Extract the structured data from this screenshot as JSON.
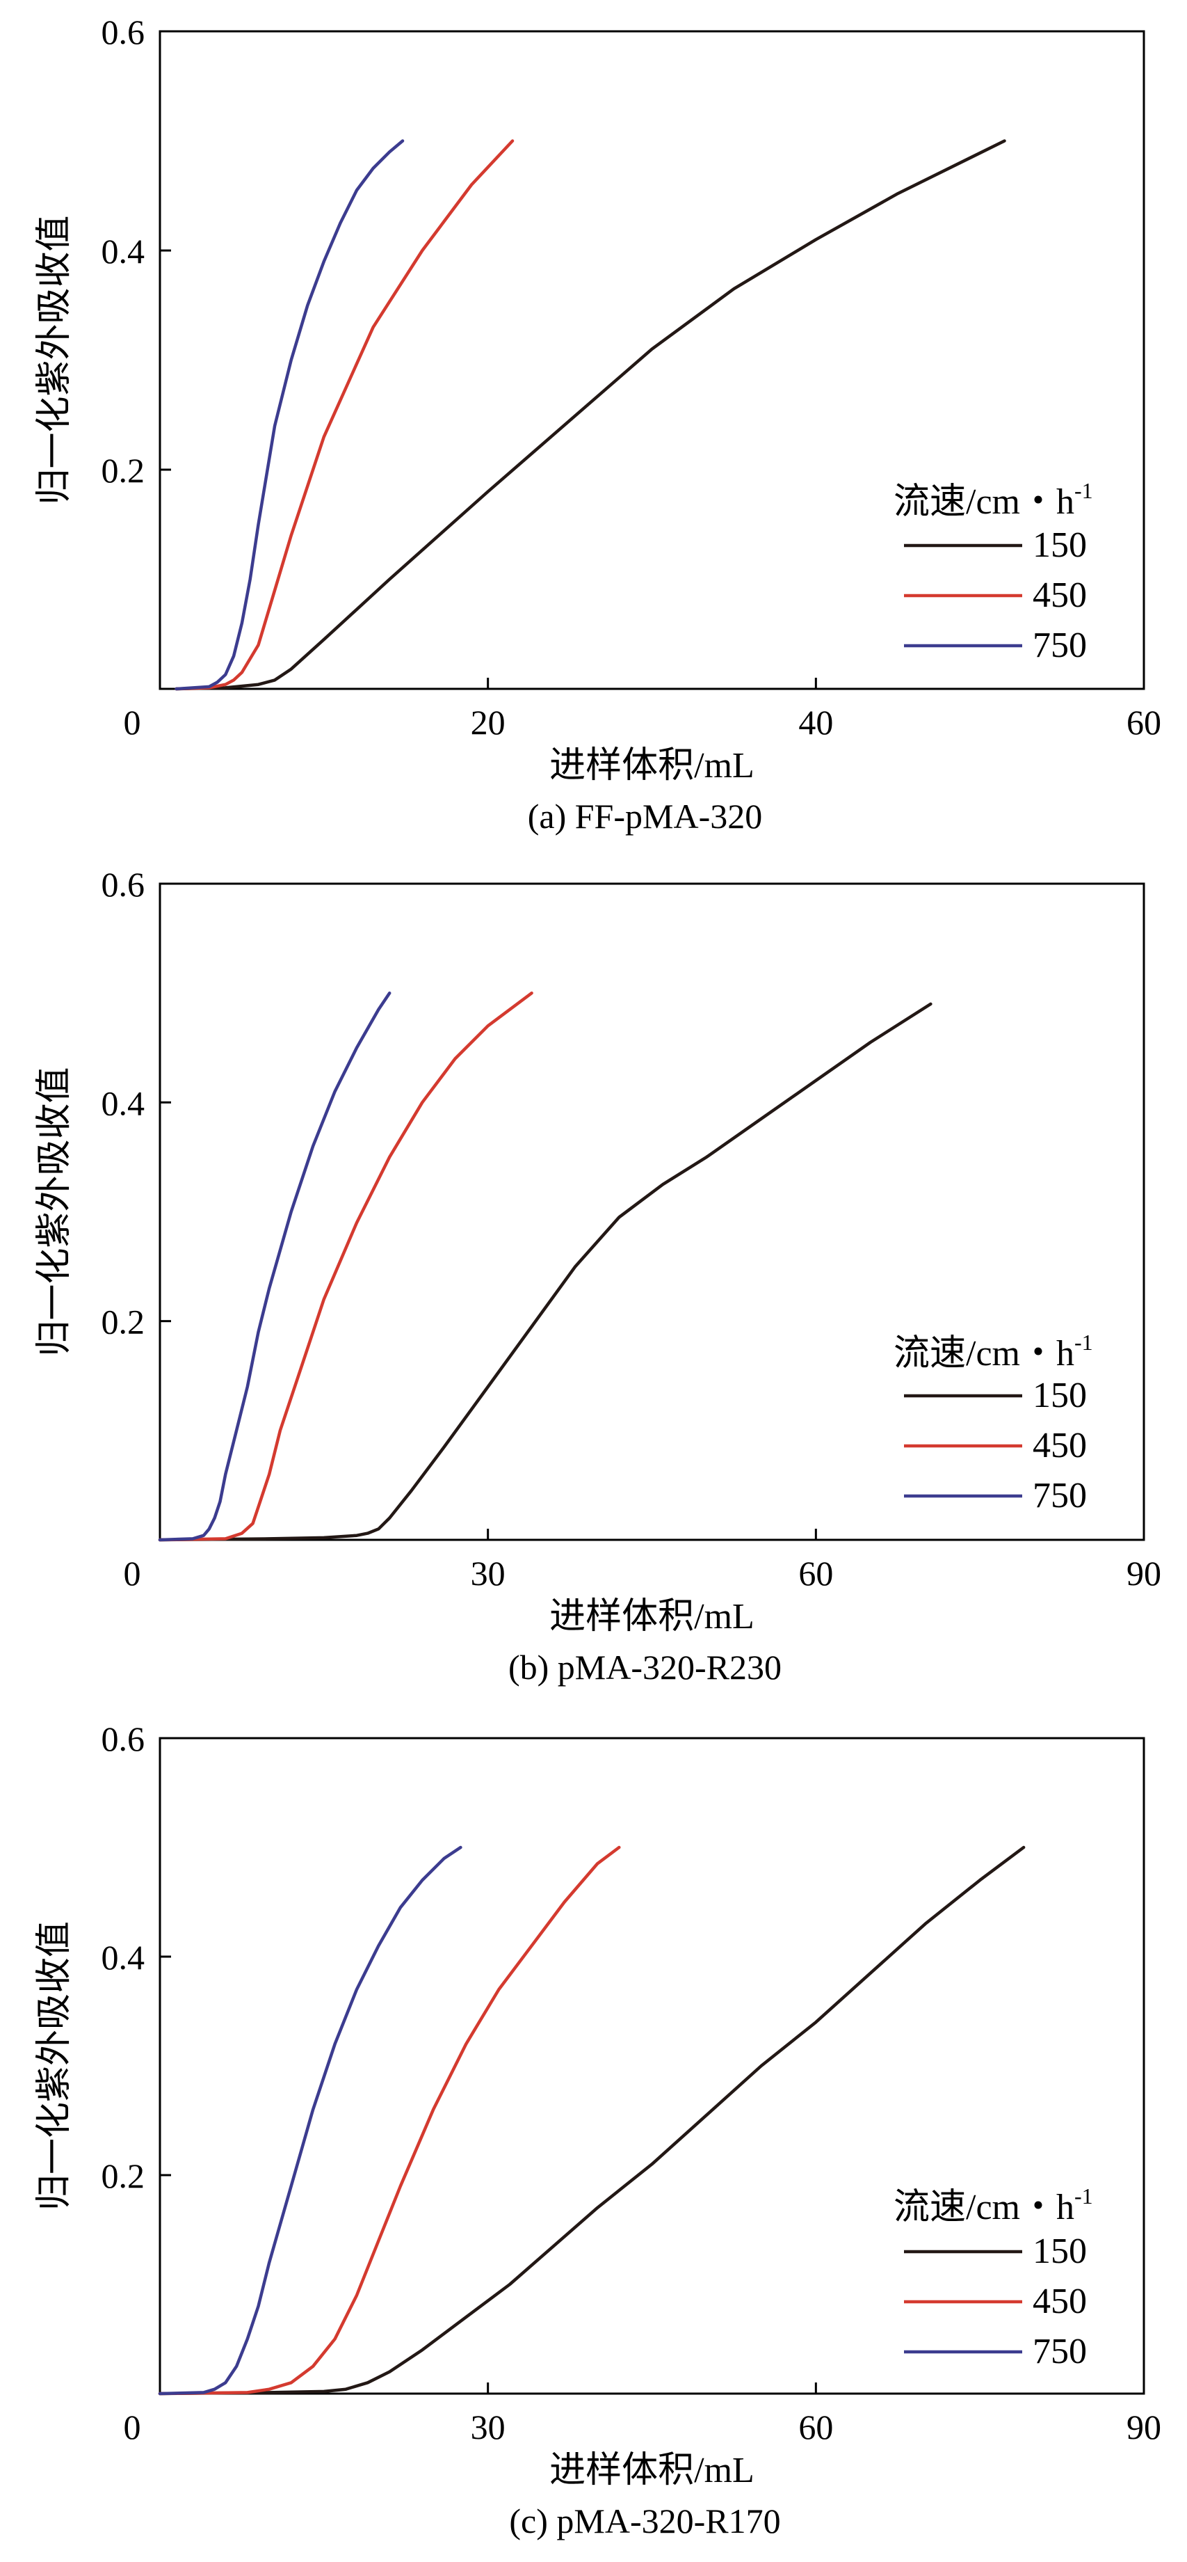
{
  "chart_data": [
    {
      "type": "line",
      "caption": "(a) FF-pMA-320",
      "xlabel": "进样体积/mL",
      "ylabel": "归一化紫外吸收值",
      "xlim": [
        0,
        60
      ],
      "ylim": [
        0,
        0.6
      ],
      "xticks": [
        20,
        40,
        60
      ],
      "yticks": [
        0.2,
        0.4,
        0.6
      ],
      "origin_label": "0",
      "legend_title": "流速/cm・h",
      "legend_title_sup": "-1",
      "legend_position": "right",
      "series": [
        {
          "name": "150",
          "color": "#231815",
          "x": [
            1,
            4,
            6,
            7,
            8,
            10,
            14,
            20,
            25,
            30,
            35,
            40,
            45,
            51.5
          ],
          "y": [
            0,
            0.001,
            0.004,
            0.008,
            0.018,
            0.045,
            0.1,
            0.18,
            0.245,
            0.31,
            0.365,
            0.41,
            0.452,
            0.5
          ]
        },
        {
          "name": "450",
          "color": "#d43a2f",
          "x": [
            1,
            3,
            4,
            4.5,
            5,
            6,
            7,
            8,
            10,
            13,
            16,
            19,
            21.5
          ],
          "y": [
            0,
            0.001,
            0.004,
            0.008,
            0.015,
            0.04,
            0.09,
            0.14,
            0.23,
            0.33,
            0.4,
            0.46,
            0.5
          ]
        },
        {
          "name": "750",
          "color": "#3c3c8f",
          "x": [
            1,
            3,
            3.5,
            4,
            4.5,
            5,
            5.5,
            6,
            7,
            8,
            9,
            10,
            11,
            12,
            13,
            14,
            14.8
          ],
          "y": [
            0,
            0.002,
            0.006,
            0.013,
            0.03,
            0.06,
            0.1,
            0.15,
            0.24,
            0.3,
            0.35,
            0.39,
            0.425,
            0.455,
            0.475,
            0.49,
            0.5
          ]
        }
      ]
    },
    {
      "type": "line",
      "caption": "(b) pMA-320-R230",
      "xlabel": "进样体积/mL",
      "ylabel": "归一化紫外吸收值",
      "xlim": [
        0,
        90
      ],
      "ylim": [
        0,
        0.6
      ],
      "xticks": [
        30,
        60,
        90
      ],
      "yticks": [
        0.2,
        0.4,
        0.6
      ],
      "origin_label": "0",
      "legend_title": "流速/cm・h",
      "legend_title_sup": "-1",
      "legend_position": "right",
      "series": [
        {
          "name": "150",
          "color": "#231815",
          "x": [
            0,
            10,
            15,
            18,
            19,
            20,
            21,
            23,
            26,
            30,
            34,
            38,
            42,
            46,
            50,
            55,
            60,
            65,
            70.5
          ],
          "y": [
            0,
            0.001,
            0.002,
            0.004,
            0.006,
            0.01,
            0.02,
            0.045,
            0.085,
            0.14,
            0.195,
            0.25,
            0.295,
            0.325,
            0.35,
            0.385,
            0.42,
            0.455,
            0.49
          ]
        },
        {
          "name": "450",
          "color": "#d43a2f",
          "x": [
            0,
            6,
            7.5,
            8.5,
            9,
            10,
            11,
            13,
            15,
            18,
            21,
            24,
            27,
            30,
            34
          ],
          "y": [
            0,
            0.001,
            0.006,
            0.015,
            0.03,
            0.06,
            0.1,
            0.16,
            0.22,
            0.29,
            0.35,
            0.4,
            0.44,
            0.47,
            0.5
          ]
        },
        {
          "name": "750",
          "color": "#3c3c8f",
          "x": [
            0,
            3,
            4,
            4.5,
            5,
            5.5,
            6,
            7,
            8,
            9,
            10,
            12,
            14,
            16,
            18,
            20,
            21
          ],
          "y": [
            0,
            0.001,
            0.004,
            0.01,
            0.02,
            0.035,
            0.06,
            0.1,
            0.14,
            0.19,
            0.23,
            0.3,
            0.36,
            0.41,
            0.45,
            0.485,
            0.5
          ]
        }
      ]
    },
    {
      "type": "line",
      "caption": "(c) pMA-320-R170",
      "xlabel": "进样体积/mL",
      "ylabel": "归一化紫外吸收值",
      "xlim": [
        0,
        90
      ],
      "ylim": [
        0,
        0.6
      ],
      "xticks": [
        30,
        60,
        90
      ],
      "yticks": [
        0.2,
        0.4,
        0.6
      ],
      "origin_label": "0",
      "legend_title": "流速/cm・h",
      "legend_title_sup": "-1",
      "legend_position": "right",
      "series": [
        {
          "name": "150",
          "color": "#231815",
          "x": [
            0,
            10,
            15,
            17,
            19,
            21,
            24,
            28,
            32,
            36,
            40,
            45,
            50,
            55,
            60,
            65,
            70,
            75,
            79
          ],
          "y": [
            0,
            0.001,
            0.002,
            0.004,
            0.01,
            0.02,
            0.04,
            0.07,
            0.1,
            0.135,
            0.17,
            0.21,
            0.255,
            0.3,
            0.34,
            0.385,
            0.43,
            0.47,
            0.5
          ]
        },
        {
          "name": "450",
          "color": "#d43a2f",
          "x": [
            0,
            8,
            10,
            12,
            14,
            16,
            18,
            20,
            22,
            25,
            28,
            31,
            34,
            37,
            40,
            42
          ],
          "y": [
            0,
            0.001,
            0.004,
            0.01,
            0.025,
            0.05,
            0.09,
            0.14,
            0.19,
            0.26,
            0.32,
            0.37,
            0.41,
            0.45,
            0.485,
            0.5
          ]
        },
        {
          "name": "750",
          "color": "#3c3c8f",
          "x": [
            0,
            4,
            5,
            6,
            7,
            8,
            9,
            10,
            12,
            14,
            16,
            18,
            20,
            22,
            24,
            26,
            27.5
          ],
          "y": [
            0,
            0.001,
            0.004,
            0.01,
            0.025,
            0.05,
            0.08,
            0.12,
            0.19,
            0.26,
            0.32,
            0.37,
            0.41,
            0.445,
            0.47,
            0.49,
            0.5
          ]
        }
      ]
    }
  ]
}
